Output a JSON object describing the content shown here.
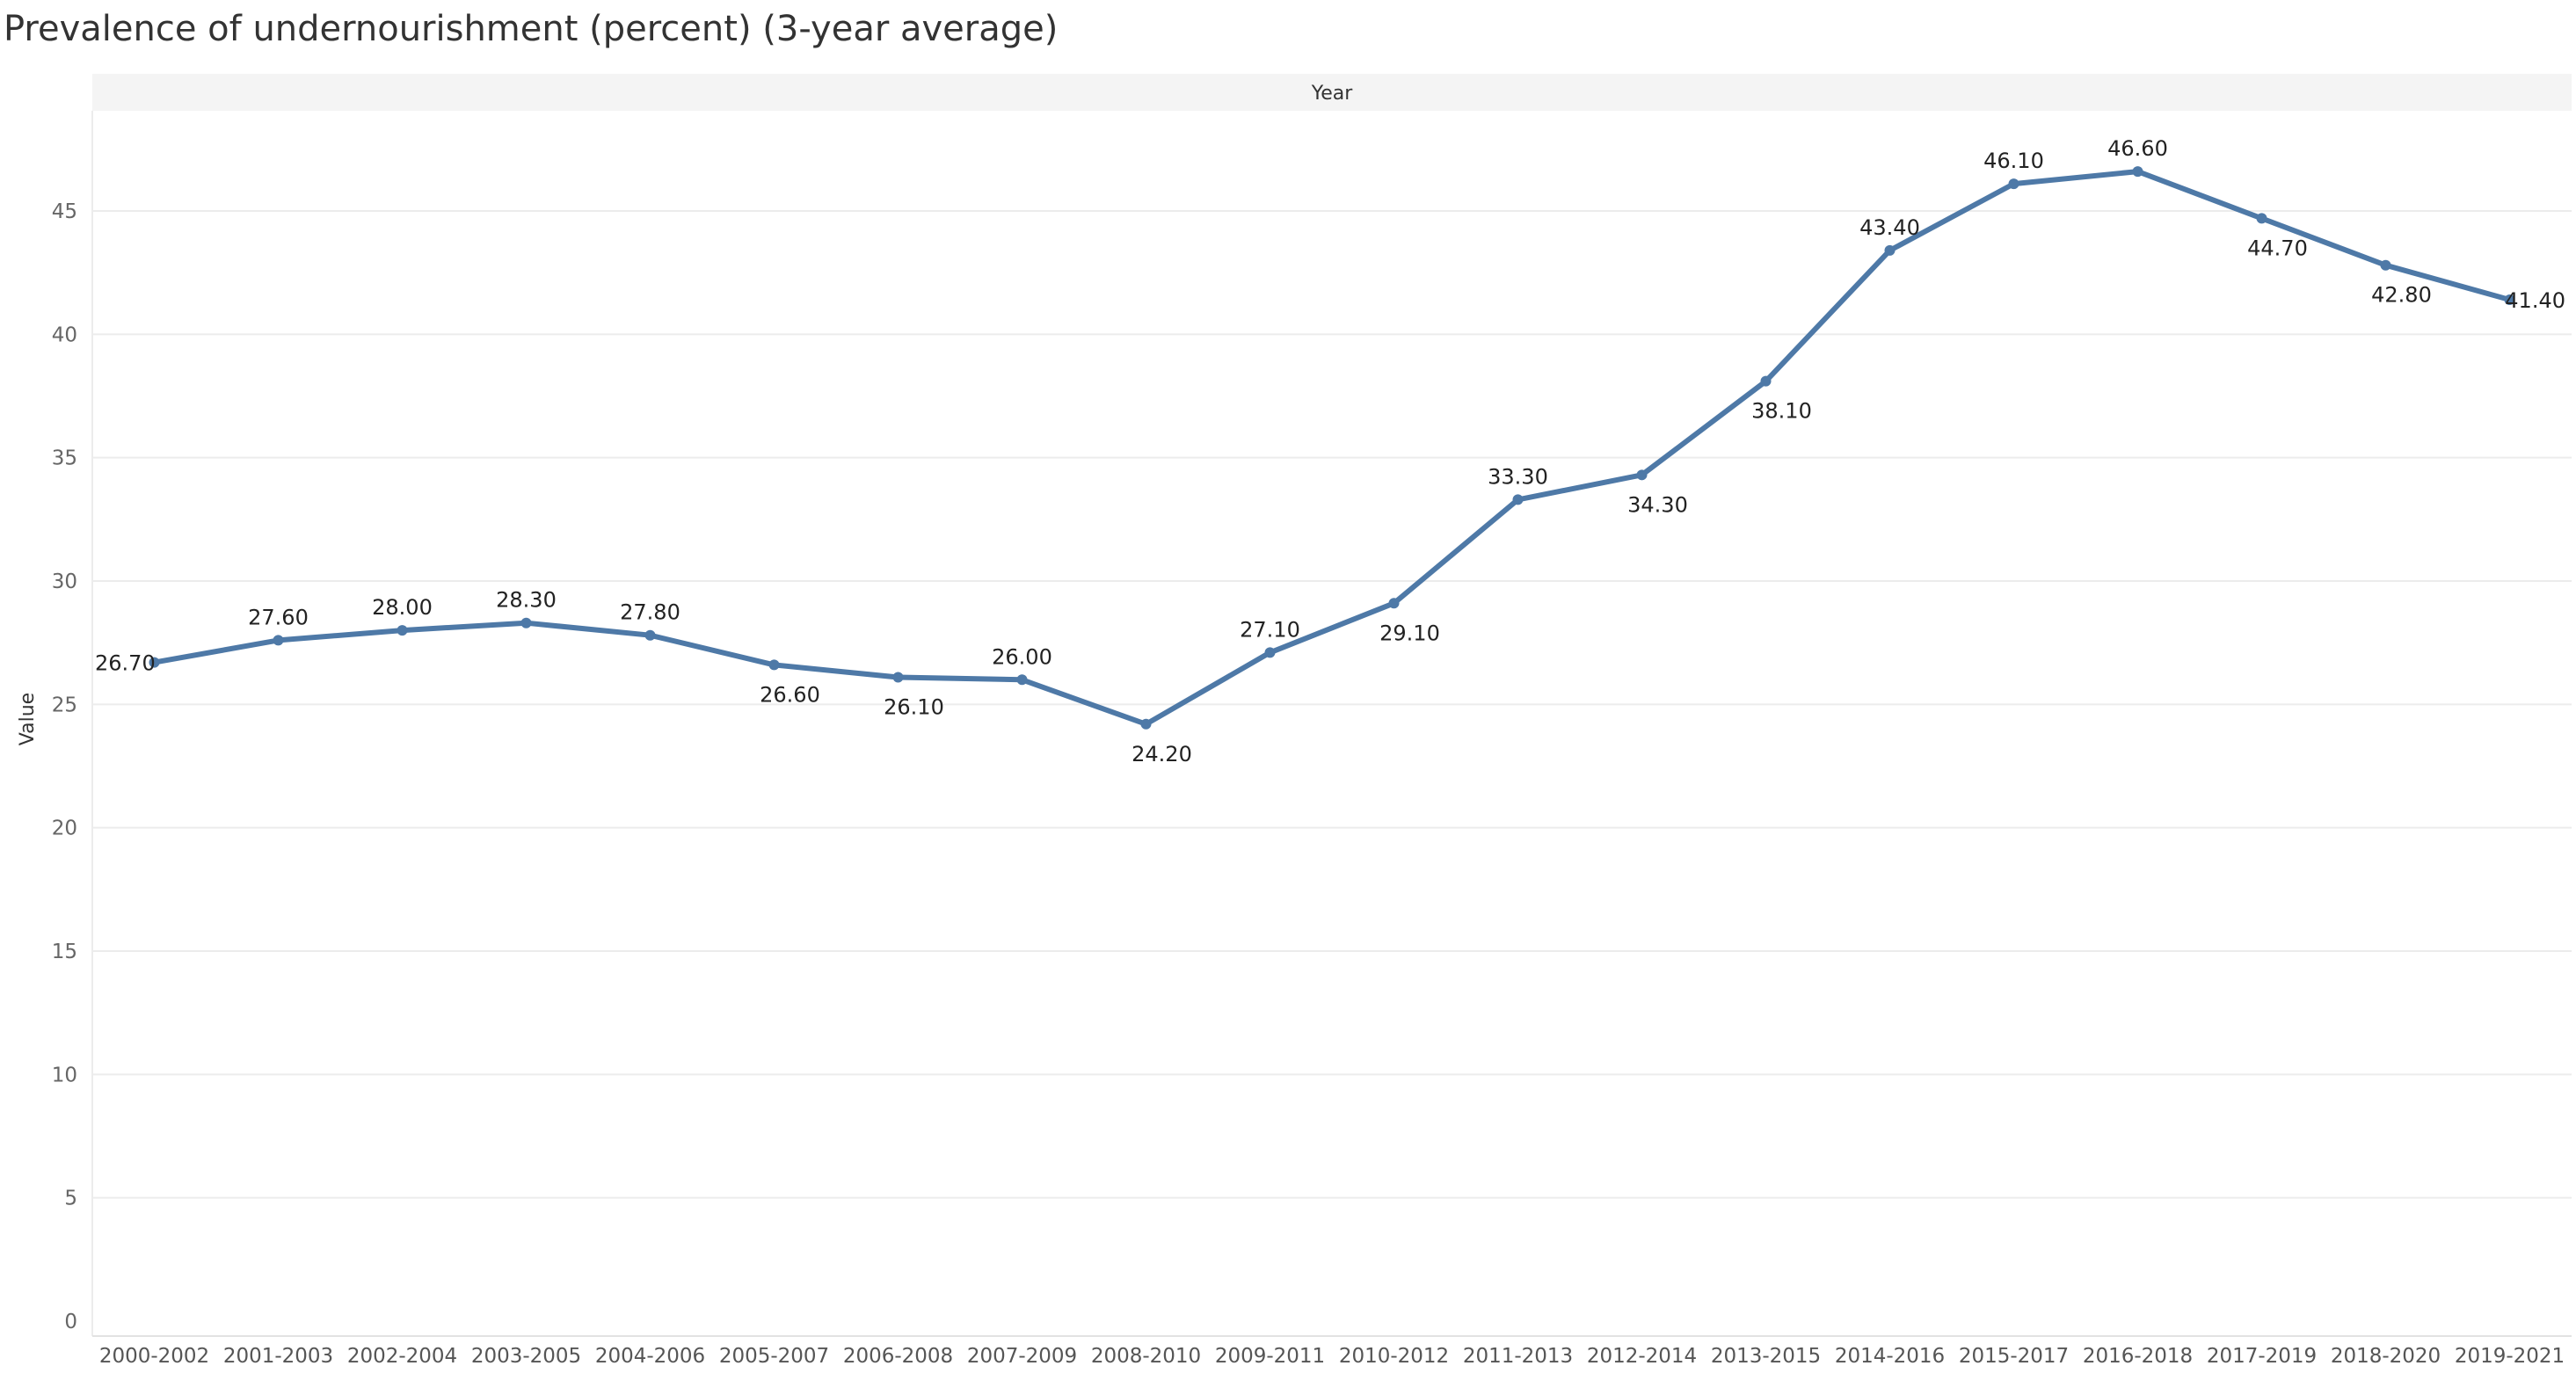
{
  "chart_data": {
    "type": "line",
    "title": "Prevalence of undernourishment (percent) (3-year average)",
    "header": "Year",
    "xlabel": "",
    "ylabel": "Value",
    "ylim": [
      0,
      49
    ],
    "yticks": [
      0,
      5,
      10,
      15,
      20,
      25,
      30,
      35,
      40,
      45
    ],
    "grid": true,
    "line_color": "#4e79a7",
    "categories": [
      "2000-2002",
      "2001-2003",
      "2002-2004",
      "2003-2005",
      "2004-2006",
      "2005-2007",
      "2006-2008",
      "2007-2009",
      "2008-2010",
      "2009-2011",
      "2010-2012",
      "2011-2013",
      "2012-2014",
      "2013-2015",
      "2014-2016",
      "2015-2017",
      "2016-2018",
      "2017-2019",
      "2018-2020",
      "2019-2021"
    ],
    "values": [
      26.7,
      27.6,
      28.0,
      28.3,
      27.8,
      26.6,
      26.1,
      26.0,
      24.2,
      27.1,
      29.1,
      33.3,
      34.3,
      38.1,
      43.4,
      46.1,
      46.6,
      44.7,
      42.8,
      41.4
    ],
    "data_labels": [
      "26.70",
      "27.60",
      "28.00",
      "28.30",
      "27.80",
      "26.60",
      "26.10",
      "26.00",
      "24.20",
      "27.10",
      "29.10",
      "33.30",
      "34.30",
      "38.10",
      "43.40",
      "46.10",
      "46.60",
      "44.70",
      "42.80",
      "41.40"
    ]
  }
}
